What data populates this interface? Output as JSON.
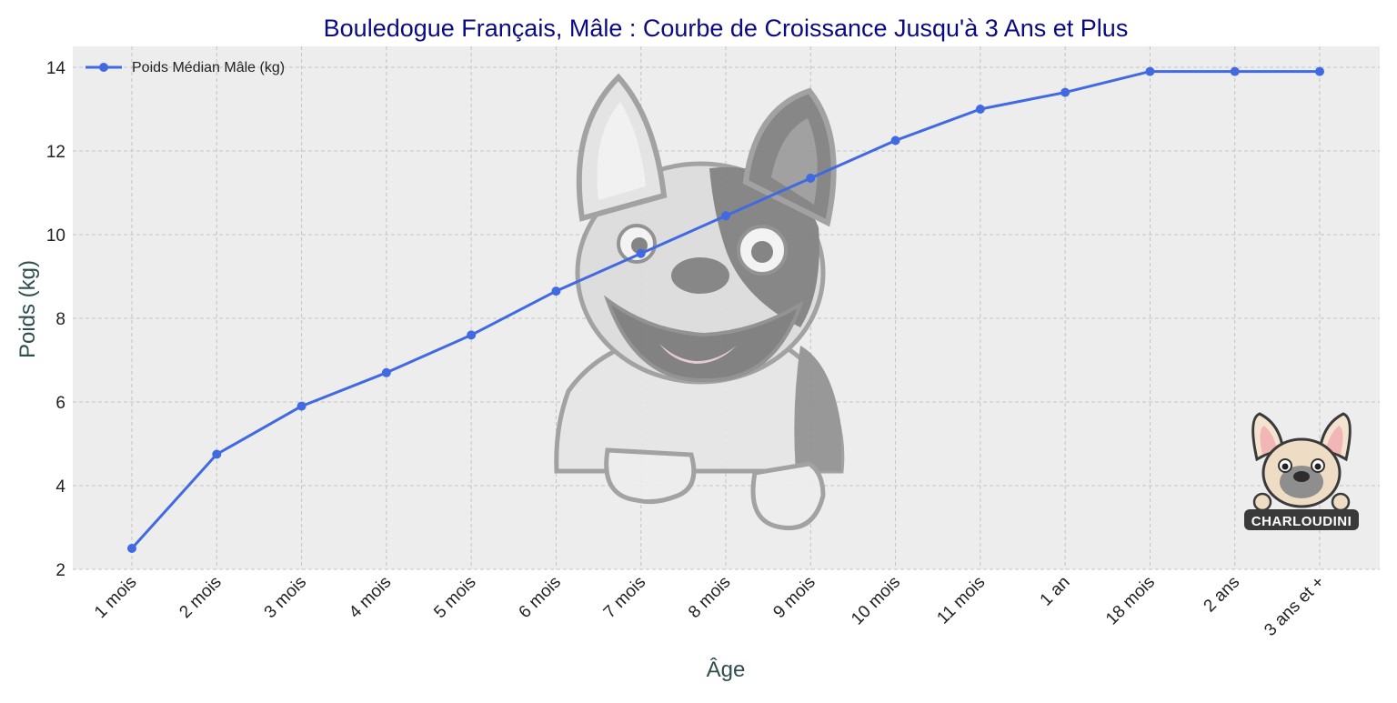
{
  "chart_data": {
    "type": "line",
    "title": "Bouledogue Français, Mâle : Courbe de Croissance Jusqu'à 3 Ans et Plus",
    "xlabel": "Âge",
    "ylabel": "Poids (kg)",
    "categories": [
      "1 mois",
      "2 mois",
      "3 mois",
      "4 mois",
      "5 mois",
      "6 mois",
      "7 mois",
      "8 mois",
      "9 mois",
      "10 mois",
      "11 mois",
      "1 an",
      "18 mois",
      "2 ans",
      "3 ans et +"
    ],
    "series": [
      {
        "name": "Poids Médian Mâle (kg)",
        "values": [
          2.5,
          4.75,
          5.9,
          6.7,
          7.6,
          8.65,
          9.55,
          10.45,
          11.35,
          12.25,
          13.0,
          13.4,
          13.9,
          13.9,
          13.9
        ]
      }
    ],
    "ylim": [
      2,
      14.5
    ],
    "yticks": [
      2,
      4,
      6,
      8,
      10,
      12,
      14
    ],
    "grid": true,
    "legend_position": "top-left",
    "colors": {
      "line": "#4169e1",
      "title": "#0b0b80",
      "axis_label": "#2f4f4f",
      "plot_background": "#ededed",
      "grid": "#c4c4c4"
    }
  },
  "watermark": {
    "brand": "CHARLOUDINI"
  }
}
